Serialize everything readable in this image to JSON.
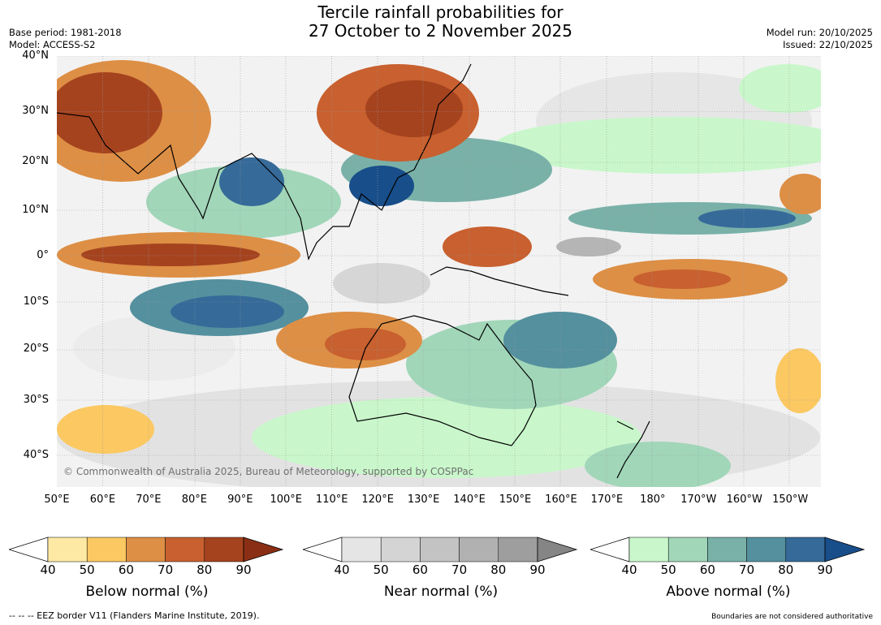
{
  "title_line1": "Tercile rainfall probabilities for",
  "title_line2": "27 October to 2 November 2025",
  "base_period": "Base period: 1981-2018",
  "model": "Model: ACCESS-S2",
  "model_run": "Model run: 20/10/2025",
  "issued": "Issued: 22/10/2025",
  "copyright": "© Commonwealth of Australia 2025, Bureau of Meteorology, supported by COSPPac",
  "lat_labels": [
    "40°N",
    "30°N",
    "20°N",
    "10°N",
    "0°",
    "10°S",
    "20°S",
    "30°S",
    "40°S"
  ],
  "lon_labels": [
    "50°E",
    "60°E",
    "70°E",
    "80°E",
    "90°E",
    "100°E",
    "110°E",
    "120°E",
    "130°E",
    "140°E",
    "150°E",
    "160°E",
    "170°E",
    "180°",
    "170°W",
    "160°W",
    "150°W"
  ],
  "colorbars": [
    {
      "title": "Below normal (%)",
      "ticks": [
        "40",
        "50",
        "60",
        "70",
        "80",
        "90"
      ],
      "colors": [
        "#ffffff",
        "#fde9a3",
        "#fbc862",
        "#dd8f45",
        "#c8602f",
        "#a5431f",
        "#8a2f15"
      ]
    },
    {
      "title": "Near normal (%)",
      "ticks": [
        "40",
        "50",
        "60",
        "70",
        "80",
        "90"
      ],
      "colors": [
        "#ffffff",
        "#e5e5e5",
        "#d4d4d4",
        "#c3c3c3",
        "#b1b1b1",
        "#9e9e9e",
        "#858585"
      ]
    },
    {
      "title": "Above normal (%)",
      "ticks": [
        "40",
        "50",
        "60",
        "70",
        "80",
        "90"
      ],
      "colors": [
        "#ffffff",
        "#c9f7cb",
        "#a1d6b9",
        "#79b1a8",
        "#54909e",
        "#356a99",
        "#184e8a"
      ]
    }
  ],
  "footer_left": "--  --  -- EEZ border V11 (Flanders Marine Institute, 2019).",
  "footer_right": "Boundaries are not considered authoritative"
}
